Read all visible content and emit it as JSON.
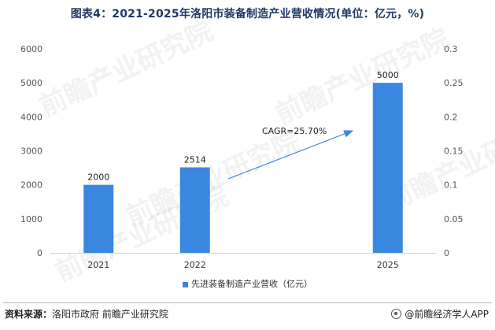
{
  "title": "图表4：2021-2025年洛阳市装备制造产业营收情况(单位：亿元，%)",
  "watermark": "前瞻产业研究院",
  "source_label": "资料来源：",
  "source_text": "洛阳市政府 前瞻产业研究院",
  "brand": "@前瞻经济学人APP",
  "chart_data": {
    "type": "bar",
    "title": "图表4：2021-2025年洛阳市装备制造产业营收情况(单位：亿元，%)",
    "categories": [
      "2021",
      "2022",
      "",
      "2025"
    ],
    "series": [
      {
        "name": "先进装备制造产业营收（亿元）",
        "values": [
          2000,
          2514,
          null,
          5000
        ],
        "color": "#3a87e0"
      }
    ],
    "data_labels": [
      "2000",
      "2514",
      "",
      "5000"
    ],
    "ylim": [
      0,
      6000
    ],
    "y_ticks": [
      0,
      1000,
      2000,
      3000,
      4000,
      5000,
      6000
    ],
    "y2lim": [
      0,
      0.3
    ],
    "y2_ticks": [
      "0",
      "0.05",
      "0.1",
      "0.15",
      "0.2",
      "0.25",
      "0.3"
    ],
    "annotation": "CAGR=25.70%",
    "legend_position": "bottom",
    "grid": false
  }
}
